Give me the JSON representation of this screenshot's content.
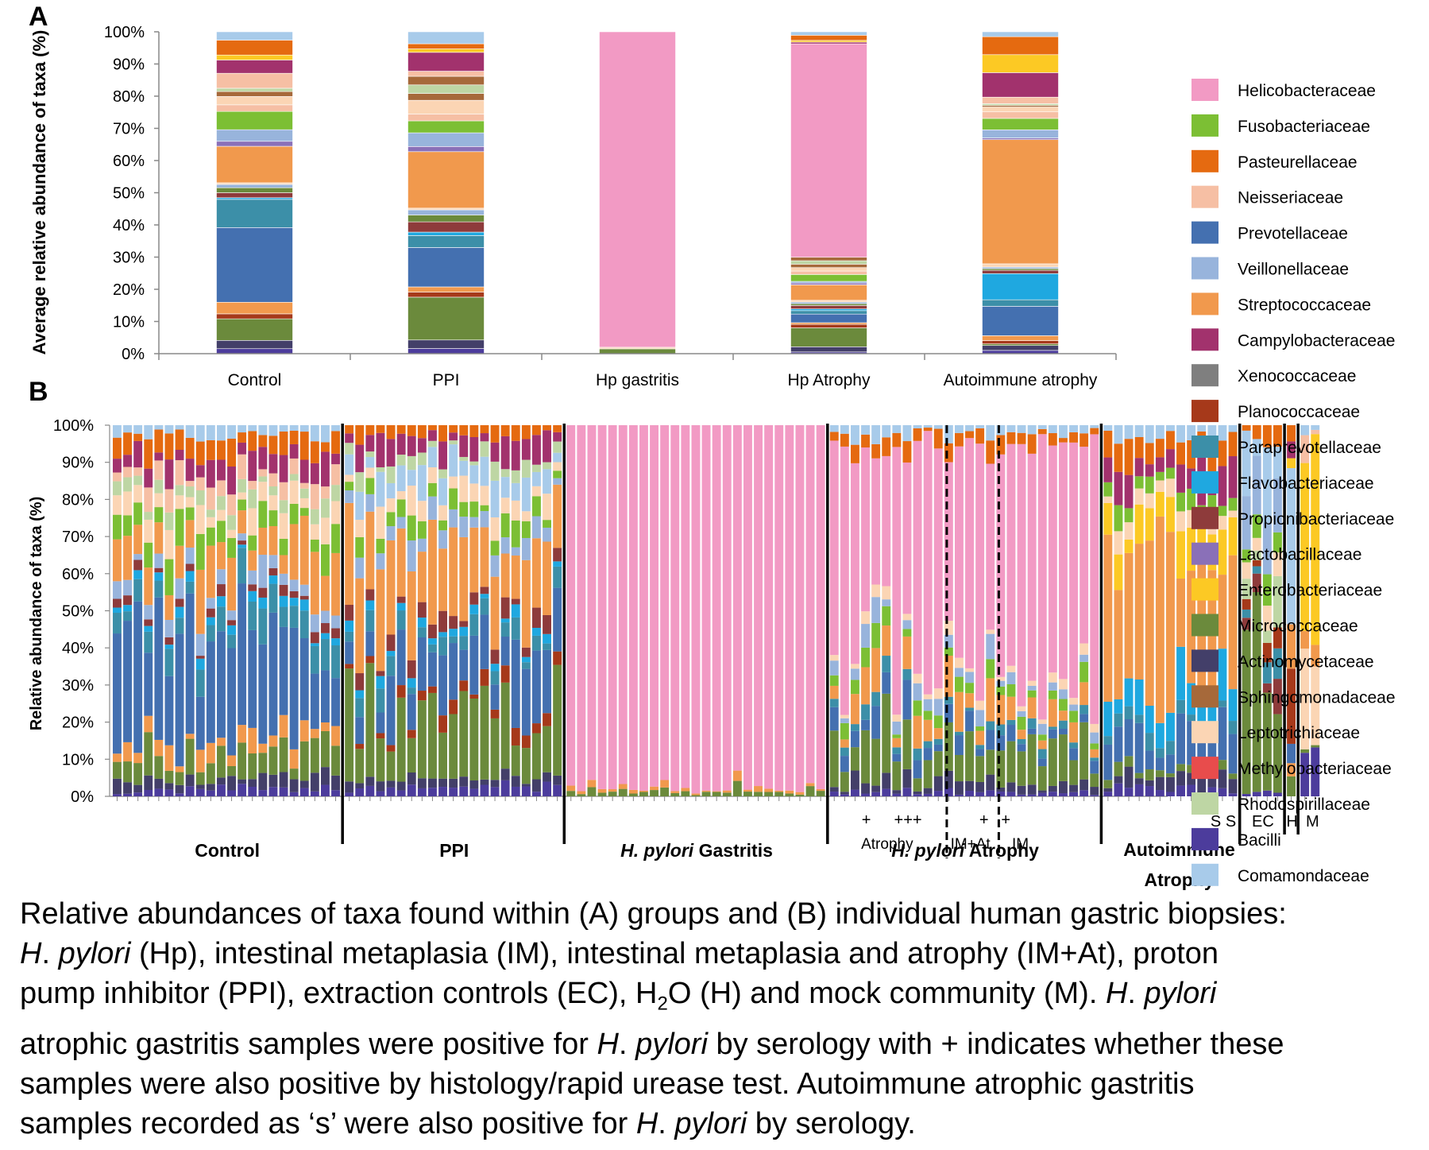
{
  "panel_labels": {
    "a": "A",
    "b": "B"
  },
  "legend": [
    {
      "name": "Helicobacteraceae",
      "color": "#f29ac4"
    },
    {
      "name": "Fusobacteriaceae",
      "color": "#7cbf34"
    },
    {
      "name": "Pasteurellaceae",
      "color": "#e56a10"
    },
    {
      "name": "Neisseriaceae",
      "color": "#f6bfa4"
    },
    {
      "name": "Prevotellaceae",
      "color": "#4470b0"
    },
    {
      "name": "Veillonellaceae",
      "color": "#98b4dc"
    },
    {
      "name": "Streptococcaceae",
      "color": "#f1994d"
    },
    {
      "name": "Campylobacteraceae",
      "color": "#a2326d"
    },
    {
      "name": "Xenococcaceae",
      "color": "#7f7f7f"
    },
    {
      "name": "Planococcaceae",
      "color": "#a6391a"
    },
    {
      "name": "Paraprevotellaceae",
      "color": "#3c8fa8"
    },
    {
      "name": "Flavobacteriaceae",
      "color": "#1fa8e0"
    },
    {
      "name": "Propionibacteriaceae",
      "color": "#8e3b3b"
    },
    {
      "name": "Lactobacillaceae",
      "color": "#8a70b8"
    },
    {
      "name": "Enterobacteriaceae",
      "color": "#fcc924"
    },
    {
      "name": "Micrococcaceae",
      "color": "#6b8a3c"
    },
    {
      "name": "Actinomycetaceae",
      "color": "#433f69"
    },
    {
      "name": "Sphingomonadaceae",
      "color": "#a6693a"
    },
    {
      "name": "Leptotrichiaceae",
      "color": "#fbd5b4"
    },
    {
      "name": "Methylobacteriaceae",
      "color": "#e84c4c"
    },
    {
      "name": "Rhodospirillaceae",
      "color": "#bed6a4"
    },
    {
      "name": "Bacilli",
      "color": "#4c3c9c"
    },
    {
      "name": "Comamondaceae",
      "color": "#a8cbea"
    }
  ],
  "chart_data": [
    {
      "type": "bar",
      "stacked": true,
      "ylabel": "Average relative abundance of taxa (%)",
      "ylim": [
        0,
        100
      ],
      "yticks": [
        "0%",
        "10%",
        "20%",
        "30%",
        "40%",
        "50%",
        "60%",
        "70%",
        "80%",
        "90%",
        "100%"
      ],
      "categories": [
        "Control",
        "PPI",
        "Hp gastritis",
        "Hp Atrophy",
        "Autoimmune atrophy"
      ],
      "series": [
        {
          "name": "Bacilli",
          "values": [
            1.5,
            1.5,
            0,
            0.5,
            1
          ]
        },
        {
          "name": "Actinomycetaceae",
          "values": [
            2.5,
            2.5,
            0,
            1.5,
            1.5
          ]
        },
        {
          "name": "Micrococcaceae",
          "values": [
            6.5,
            12.5,
            1.5,
            5.5,
            0.5
          ]
        },
        {
          "name": "Planococcaceae",
          "values": [
            1.5,
            1.5,
            0,
            1,
            1
          ]
        },
        {
          "name": "Streptococcaceae",
          "values": [
            3.5,
            1.5,
            0,
            0.5,
            1.5
          ]
        },
        {
          "name": "Prevotellaceae",
          "values": [
            22.5,
            11.5,
            0,
            2.5,
            9
          ]
        },
        {
          "name": "Paraprevotellaceae",
          "values": [
            8.5,
            3.5,
            0,
            1,
            2
          ]
        },
        {
          "name": "Flavobacteriaceae",
          "values": [
            0.5,
            1,
            0,
            0.5,
            8
          ]
        },
        {
          "name": "Propionibacteriaceae",
          "values": [
            1.5,
            3,
            0,
            1,
            1
          ]
        },
        {
          "name": "Micrococcaceae",
          "values": [
            1.5,
            2,
            0,
            0.5,
            0.5
          ]
        },
        {
          "name": "Veillonellaceae",
          "values": [
            1,
            1.5,
            0,
            0.5,
            0.5
          ]
        },
        {
          "name": "Leptotrichiaceae",
          "values": [
            0.5,
            0.5,
            0.5,
            0.5,
            1
          ]
        },
        {
          "name": "Streptococcaceae",
          "values": [
            11,
            16.5,
            0,
            4.5,
            38
          ]
        },
        {
          "name": "Lactobacillaceae",
          "values": [
            1.5,
            1.5,
            0,
            0.5,
            0.5
          ]
        },
        {
          "name": "Veillonellaceae",
          "values": [
            3.5,
            4,
            0,
            0.5,
            2.5
          ]
        },
        {
          "name": "Fusobacteriaceae",
          "values": [
            5.5,
            3.5,
            0,
            2,
            3.5
          ]
        },
        {
          "name": "Neisseriaceae",
          "values": [
            2,
            2,
            0,
            1,
            2
          ]
        },
        {
          "name": "Leptotrichiaceae",
          "values": [
            2.5,
            4,
            0,
            1,
            1.5
          ]
        },
        {
          "name": "Sphingomonadaceae",
          "values": [
            1.5,
            2,
            0,
            1,
            0.5
          ]
        },
        {
          "name": "Rhodospirillaceae",
          "values": [
            1,
            2.5,
            0,
            1,
            0.5
          ]
        },
        {
          "name": "Sphingomonadaceae",
          "values": [
            0,
            2.5,
            0,
            1,
            0
          ]
        },
        {
          "name": "Helicobacteraceae",
          "values": [
            0,
            0,
            98,
            62,
            0
          ]
        },
        {
          "name": "Neisseriaceae",
          "values": [
            4.5,
            1.5,
            0,
            0,
            2
          ]
        },
        {
          "name": "Campylobacteraceae",
          "values": [
            4,
            5.5,
            0,
            0.5,
            7.5
          ]
        },
        {
          "name": "Enterobacteriaceae",
          "values": [
            1.5,
            1,
            0,
            0.5,
            5.5
          ]
        },
        {
          "name": "Pasteurellaceae",
          "values": [
            4.5,
            1.5,
            0,
            1.5,
            5.5
          ]
        },
        {
          "name": "Comamondaceae",
          "values": [
            2.5,
            3.5,
            0,
            1,
            1.5
          ]
        }
      ]
    },
    {
      "type": "bar",
      "stacked": true,
      "ylabel": "Relative abundance of taxa (%)",
      "ylim": [
        0,
        100
      ],
      "yticks": [
        "0%",
        "10%",
        "20%",
        "30%",
        "40%",
        "50%",
        "60%",
        "70%",
        "80%",
        "90%",
        "100%"
      ],
      "groups": [
        {
          "label": "Control",
          "n": 22,
          "profile": "control"
        },
        {
          "label": "PPI",
          "n": 21,
          "profile": "ppi"
        },
        {
          "label_it": "H. pylori",
          "label_rest": " Gastritis",
          "n": 25,
          "profile": "hp"
        },
        {
          "label_it": "H. pylori",
          "label_rest": " Atrophy",
          "n": 26,
          "profile": "hpatrophy"
        },
        {
          "label": "Autoimmune\nAtrophy",
          "n": 13,
          "profile": "autoimmune"
        },
        {
          "label": "EC",
          "n": 4,
          "profile": "ec"
        },
        {
          "label": "H",
          "n": 1,
          "profile": "water"
        },
        {
          "label": "M",
          "n": 2,
          "profile": "mock"
        }
      ],
      "subgroup_labels": [
        {
          "text": "+",
          "row": "mark"
        },
        {
          "text": "+++",
          "row": "mark"
        },
        {
          "text": "Atrophy",
          "row": "sub"
        },
        {
          "text": "+",
          "row": "mark"
        },
        {
          "text": "IM+At",
          "row": "sub"
        },
        {
          "text": "+",
          "row": "mark"
        },
        {
          "text": "IM",
          "row": "sub"
        },
        {
          "text": "S S",
          "row": "mark"
        },
        {
          "text": "EC",
          "row": "mark"
        },
        {
          "text": "H",
          "row": "mark"
        },
        {
          "text": "M",
          "row": "mark"
        }
      ]
    }
  ],
  "caption": {
    "l1a": "Relative abundances of taxa found within (A) groups and (B) individual human gastric biopsies:",
    "l2i": "H",
    "l2b": ". ",
    "l2c": "pylori",
    "l2d": " (Hp), intestinal metaplasia (IM), intestinal metaplasia and atrophy (IM+At), proton",
    "l3a": "pump inhibitor (PPI), extraction controls (EC), H",
    "l3sub": "2",
    "l3b": "O (H) and mock community (M). ",
    "l3i1": "H",
    "l3c": ". ",
    "l3i2": "pylori",
    "l4a": "atrophic gastritis samples were positive for ",
    "l4i1": "H",
    "l4b": ". ",
    "l4i2": "pylori",
    "l4c": " by serology with + indicates whether these",
    "l5": "samples were also positive by histology/rapid urease test. Autoimmune atrophic gastritis",
    "l6a": "samples recorded as ‘s’ were also positive for ",
    "l6i1": "H",
    "l6b": ". ",
    "l6i2": "pylori",
    "l6c": " by serology."
  }
}
